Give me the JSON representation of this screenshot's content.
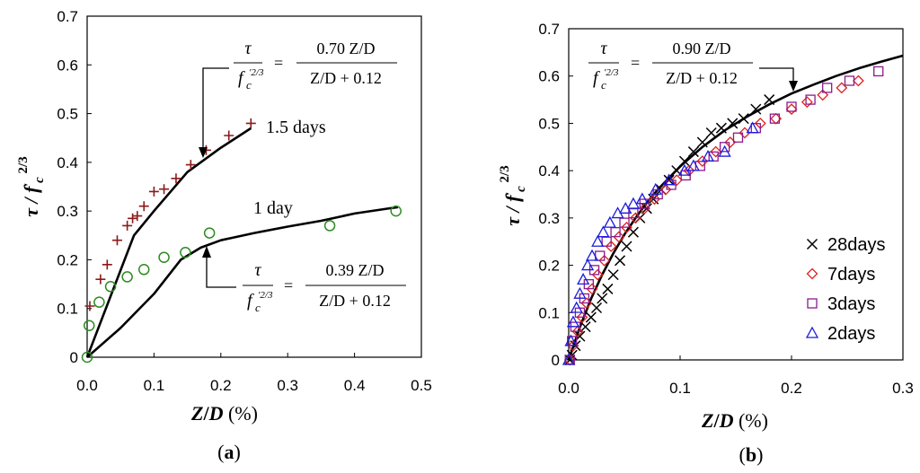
{
  "chart_data": [
    {
      "type": "scatter",
      "panel_label": "(a)",
      "xlabel": "Z/D (%)",
      "ylabel": "τ / f'c 2/3",
      "xlim": [
        0,
        0.5
      ],
      "ylim": [
        0,
        0.7
      ],
      "x_ticks": [
        "0.0",
        "0.1",
        "0.2",
        "0.3",
        "0.4",
        "0.5"
      ],
      "y_ticks": [
        "0",
        "0.1",
        "0.2",
        "0.3",
        "0.4",
        "0.5",
        "0.6",
        "0.7"
      ],
      "series": [
        {
          "name": "1.5 days",
          "marker": "plus",
          "color": "#8B1A1A",
          "points": [
            [
              0.004,
              0.105
            ],
            [
              0.02,
              0.16
            ],
            [
              0.03,
              0.19
            ],
            [
              0.045,
              0.24
            ],
            [
              0.06,
              0.27
            ],
            [
              0.068,
              0.285
            ],
            [
              0.075,
              0.29
            ],
            [
              0.085,
              0.31
            ],
            [
              0.1,
              0.34
            ],
            [
              0.115,
              0.345
            ],
            [
              0.133,
              0.367
            ],
            [
              0.155,
              0.395
            ],
            [
              0.178,
              0.425
            ],
            [
              0.212,
              0.455
            ],
            [
              0.245,
              0.48
            ]
          ]
        },
        {
          "name": "1 day",
          "marker": "circle",
          "color": "#2E8B22",
          "points": [
            [
              0.0,
              0.0
            ],
            [
              0.003,
              0.065
            ],
            [
              0.018,
              0.113
            ],
            [
              0.035,
              0.145
            ],
            [
              0.06,
              0.165
            ],
            [
              0.085,
              0.18
            ],
            [
              0.115,
              0.205
            ],
            [
              0.147,
              0.215
            ],
            [
              0.183,
              0.255
            ],
            [
              0.363,
              0.27
            ],
            [
              0.462,
              0.3
            ]
          ]
        }
      ],
      "fits": [
        {
          "name": "fit-1.5-days",
          "points": [
            [
              0.0,
              0.0
            ],
            [
              0.07,
              0.25
            ],
            [
              0.1,
              0.3
            ],
            [
              0.15,
              0.38
            ],
            [
              0.2,
              0.43
            ],
            [
              0.245,
              0.47
            ]
          ]
        },
        {
          "name": "fit-1-day",
          "points": [
            [
              0.0,
              0.0
            ],
            [
              0.05,
              0.06
            ],
            [
              0.1,
              0.13
            ],
            [
              0.14,
              0.2
            ],
            [
              0.17,
              0.225
            ],
            [
              0.2,
              0.24
            ],
            [
              0.25,
              0.255
            ],
            [
              0.3,
              0.268
            ],
            [
              0.35,
              0.28
            ],
            [
              0.4,
              0.295
            ],
            [
              0.45,
              0.305
            ],
            [
              0.465,
              0.308
            ]
          ]
        }
      ],
      "annotations": [
        {
          "text": "1.5 days",
          "at": [
            0.262,
            0.475
          ]
        },
        {
          "text": "1 day",
          "at": [
            0.32,
            0.313
          ]
        }
      ],
      "equations": [
        {
          "numerator": "0.70 Z/D",
          "denominator": "Z/D + 0.12",
          "lhs_top": "τ",
          "lhs_bottom": "f",
          "lhs_sub": "c",
          "lhs_sup": "′2/3"
        },
        {
          "numerator": "0.39 Z/D",
          "denominator": "Z/D + 0.12",
          "lhs_top": "τ",
          "lhs_bottom": "f",
          "lhs_sub": "c",
          "lhs_sup": "′2/3"
        }
      ],
      "equation_sign": "="
    },
    {
      "type": "scatter",
      "panel_label": "(b)",
      "xlabel": "Z/D (%)",
      "ylabel": "τ / f'c 2/3",
      "xlim": [
        0,
        0.3
      ],
      "ylim": [
        0,
        0.7
      ],
      "x_ticks": [
        "0.0",
        "0.1",
        "0.2",
        "0.3"
      ],
      "y_ticks": [
        "0",
        "0.1",
        "0.2",
        "0.3",
        "0.4",
        "0.5",
        "0.6",
        "0.7"
      ],
      "series": [
        {
          "name": "28days",
          "marker": "x",
          "color": "#000000",
          "points": [
            [
              0.001,
              0.0
            ],
            [
              0.003,
              0.01
            ],
            [
              0.006,
              0.03
            ],
            [
              0.01,
              0.05
            ],
            [
              0.015,
              0.07
            ],
            [
              0.02,
              0.09
            ],
            [
              0.025,
              0.11
            ],
            [
              0.03,
              0.13
            ],
            [
              0.035,
              0.15
            ],
            [
              0.04,
              0.18
            ],
            [
              0.046,
              0.21
            ],
            [
              0.052,
              0.24
            ],
            [
              0.058,
              0.27
            ],
            [
              0.064,
              0.3
            ],
            [
              0.07,
              0.32
            ],
            [
              0.076,
              0.34
            ],
            [
              0.083,
              0.36
            ],
            [
              0.09,
              0.38
            ],
            [
              0.097,
              0.4
            ],
            [
              0.104,
              0.42
            ],
            [
              0.112,
              0.44
            ],
            [
              0.12,
              0.46
            ],
            [
              0.128,
              0.48
            ],
            [
              0.137,
              0.49
            ],
            [
              0.147,
              0.5
            ],
            [
              0.157,
              0.51
            ],
            [
              0.168,
              0.53
            ],
            [
              0.18,
              0.55
            ]
          ]
        },
        {
          "name": "7days",
          "marker": "diamond",
          "color": "#E02020",
          "points": [
            [
              0.001,
              0.0
            ],
            [
              0.004,
              0.03
            ],
            [
              0.008,
              0.06
            ],
            [
              0.012,
              0.09
            ],
            [
              0.016,
              0.12
            ],
            [
              0.021,
              0.15
            ],
            [
              0.026,
              0.18
            ],
            [
              0.032,
              0.21
            ],
            [
              0.038,
              0.24
            ],
            [
              0.045,
              0.26
            ],
            [
              0.052,
              0.28
            ],
            [
              0.06,
              0.3
            ],
            [
              0.068,
              0.32
            ],
            [
              0.077,
              0.34
            ],
            [
              0.087,
              0.36
            ],
            [
              0.097,
              0.38
            ],
            [
              0.108,
              0.4
            ],
            [
              0.12,
              0.42
            ],
            [
              0.132,
              0.44
            ],
            [
              0.145,
              0.46
            ],
            [
              0.158,
              0.48
            ],
            [
              0.172,
              0.5
            ],
            [
              0.186,
              0.51
            ],
            [
              0.2,
              0.53
            ],
            [
              0.214,
              0.545
            ],
            [
              0.228,
              0.56
            ],
            [
              0.245,
              0.575
            ],
            [
              0.26,
              0.59
            ]
          ]
        },
        {
          "name": "3days",
          "marker": "square",
          "color": "#8B1A8B",
          "points": [
            [
              0.001,
              0.0
            ],
            [
              0.003,
              0.04
            ],
            [
              0.006,
              0.07
            ],
            [
              0.01,
              0.1
            ],
            [
              0.014,
              0.13
            ],
            [
              0.018,
              0.16
            ],
            [
              0.023,
              0.19
            ],
            [
              0.028,
              0.22
            ],
            [
              0.034,
              0.25
            ],
            [
              0.042,
              0.27
            ],
            [
              0.05,
              0.29
            ],
            [
              0.058,
              0.31
            ],
            [
              0.068,
              0.33
            ],
            [
              0.08,
              0.35
            ],
            [
              0.092,
              0.37
            ],
            [
              0.105,
              0.39
            ],
            [
              0.118,
              0.41
            ],
            [
              0.13,
              0.43
            ],
            [
              0.14,
              0.45
            ],
            [
              0.152,
              0.47
            ],
            [
              0.168,
              0.49
            ],
            [
              0.185,
              0.51
            ],
            [
              0.2,
              0.535
            ],
            [
              0.217,
              0.55
            ],
            [
              0.232,
              0.575
            ],
            [
              0.252,
              0.59
            ],
            [
              0.278,
              0.61
            ]
          ]
        },
        {
          "name": "2days",
          "marker": "triangle",
          "color": "#1A1AE0",
          "points": [
            [
              0.0,
              0.0
            ],
            [
              0.002,
              0.04
            ],
            [
              0.004,
              0.08
            ],
            [
              0.007,
              0.11
            ],
            [
              0.01,
              0.14
            ],
            [
              0.013,
              0.17
            ],
            [
              0.017,
              0.2
            ],
            [
              0.021,
              0.22
            ],
            [
              0.026,
              0.25
            ],
            [
              0.031,
              0.27
            ],
            [
              0.037,
              0.29
            ],
            [
              0.044,
              0.31
            ],
            [
              0.051,
              0.32
            ],
            [
              0.058,
              0.33
            ],
            [
              0.066,
              0.34
            ],
            [
              0.078,
              0.36
            ],
            [
              0.09,
              0.38
            ],
            [
              0.104,
              0.4
            ],
            [
              0.112,
              0.41
            ],
            [
              0.125,
              0.43
            ],
            [
              0.14,
              0.44
            ],
            [
              0.165,
              0.49
            ]
          ]
        }
      ],
      "fits": [
        {
          "name": "fit-all",
          "points": [
            [
              0.0,
              0.0
            ],
            [
              0.01,
              0.069
            ],
            [
              0.02,
              0.129
            ],
            [
              0.03,
              0.18
            ],
            [
              0.04,
              0.225
            ],
            [
              0.05,
              0.265
            ],
            [
              0.06,
              0.3
            ],
            [
              0.07,
              0.332
            ],
            [
              0.08,
              0.36
            ],
            [
              0.1,
              0.409
            ],
            [
              0.12,
              0.45
            ],
            [
              0.14,
              0.485
            ],
            [
              0.16,
              0.514
            ],
            [
              0.18,
              0.54
            ],
            [
              0.2,
              0.563
            ],
            [
              0.22,
              0.582
            ],
            [
              0.24,
              0.6
            ],
            [
              0.26,
              0.616
            ],
            [
              0.28,
              0.63
            ],
            [
              0.3,
              0.643
            ]
          ]
        }
      ],
      "legend_position": "bottom-right",
      "equations": [
        {
          "numerator": "0.90 Z/D",
          "denominator": "Z/D + 0.12",
          "lhs_top": "τ",
          "lhs_bottom": "f",
          "lhs_sub": "c",
          "lhs_sup": "′2/3"
        }
      ],
      "equation_sign": "="
    }
  ]
}
